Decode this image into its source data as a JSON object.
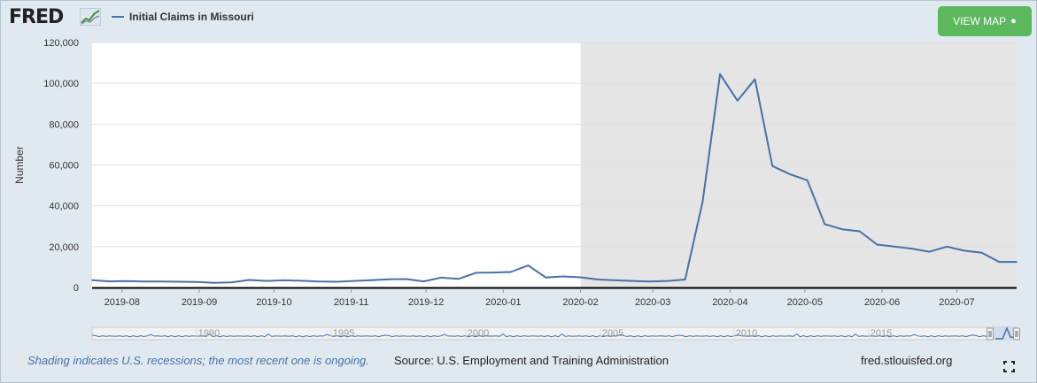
{
  "header": {
    "logo_text": "FRED",
    "legend_label": "Initial Claims in Missouri",
    "series_color": "#4572a7",
    "view_map_label": "VIEW MAP",
    "view_map_icon": "globe-icon"
  },
  "footer": {
    "note": "Shading indicates U.S. recessions; the most recent one is ongoing.",
    "source": "Source: U.S. Employment and Training Administration",
    "url": "fred.stlouisfed.org"
  },
  "chart_data": {
    "type": "line",
    "title": "",
    "xlabel": "",
    "ylabel": "Number",
    "ylim": [
      0,
      120000
    ],
    "yticks": [
      0,
      20000,
      40000,
      60000,
      80000,
      100000,
      120000
    ],
    "ytick_labels": [
      "0",
      "20,000",
      "40,000",
      "60,000",
      "80,000",
      "100,000",
      "120,000"
    ],
    "xlim": [
      "2019-07-20",
      "2020-07-25"
    ],
    "xtick_dates": [
      "2019-08-01",
      "2019-09-01",
      "2019-10-01",
      "2019-11-01",
      "2019-12-01",
      "2020-01-01",
      "2020-02-01",
      "2020-03-01",
      "2020-04-01",
      "2020-05-01",
      "2020-06-01",
      "2020-07-01"
    ],
    "xtick_labels": [
      "2019-08",
      "2019-09",
      "2019-10",
      "2019-11",
      "2019-12",
      "2020-01",
      "2020-02",
      "2020-03",
      "2020-04",
      "2020-05",
      "2020-06",
      "2020-07"
    ],
    "recession": {
      "start": "2020-02-01",
      "end": "2020-07-25",
      "color": "#e5e5e5"
    },
    "grid": true,
    "legend": "top-left",
    "series": [
      {
        "name": "Initial Claims in Missouri",
        "color": "#4572a7",
        "x": [
          "2019-07-20",
          "2019-07-27",
          "2019-08-03",
          "2019-08-10",
          "2019-08-17",
          "2019-08-24",
          "2019-08-31",
          "2019-09-07",
          "2019-09-14",
          "2019-09-21",
          "2019-09-28",
          "2019-10-05",
          "2019-10-12",
          "2019-10-19",
          "2019-10-26",
          "2019-11-02",
          "2019-11-09",
          "2019-11-16",
          "2019-11-23",
          "2019-11-30",
          "2019-12-07",
          "2019-12-14",
          "2019-12-21",
          "2019-12-28",
          "2020-01-04",
          "2020-01-11",
          "2020-01-18",
          "2020-01-25",
          "2020-02-01",
          "2020-02-08",
          "2020-02-15",
          "2020-02-22",
          "2020-02-29",
          "2020-03-07",
          "2020-03-14",
          "2020-03-21",
          "2020-03-28",
          "2020-04-04",
          "2020-04-11",
          "2020-04-18",
          "2020-04-25",
          "2020-05-02",
          "2020-05-09",
          "2020-05-16",
          "2020-05-23",
          "2020-05-30",
          "2020-06-06",
          "2020-06-13",
          "2020-06-20",
          "2020-06-27",
          "2020-07-04",
          "2020-07-11",
          "2020-07-18",
          "2020-07-25"
        ],
        "values": [
          3600,
          3000,
          3100,
          2900,
          2900,
          2800,
          2700,
          2300,
          2500,
          3700,
          3200,
          3500,
          3300,
          2900,
          2800,
          3200,
          3600,
          4000,
          4100,
          3000,
          4800,
          4200,
          7200,
          7300,
          7600,
          10800,
          4900,
          5400,
          5000,
          3900,
          3500,
          3200,
          2900,
          3200,
          3900,
          42000,
          104500,
          91500,
          102000,
          59500,
          55500,
          52500,
          31000,
          28500,
          27500,
          21000,
          20000,
          19000,
          17500,
          20000,
          18000,
          17000,
          12500,
          12500
        ]
      }
    ]
  },
  "navigator": {
    "labels": [
      "1990",
      "1995",
      "2000",
      "2005",
      "2010",
      "2015"
    ]
  }
}
